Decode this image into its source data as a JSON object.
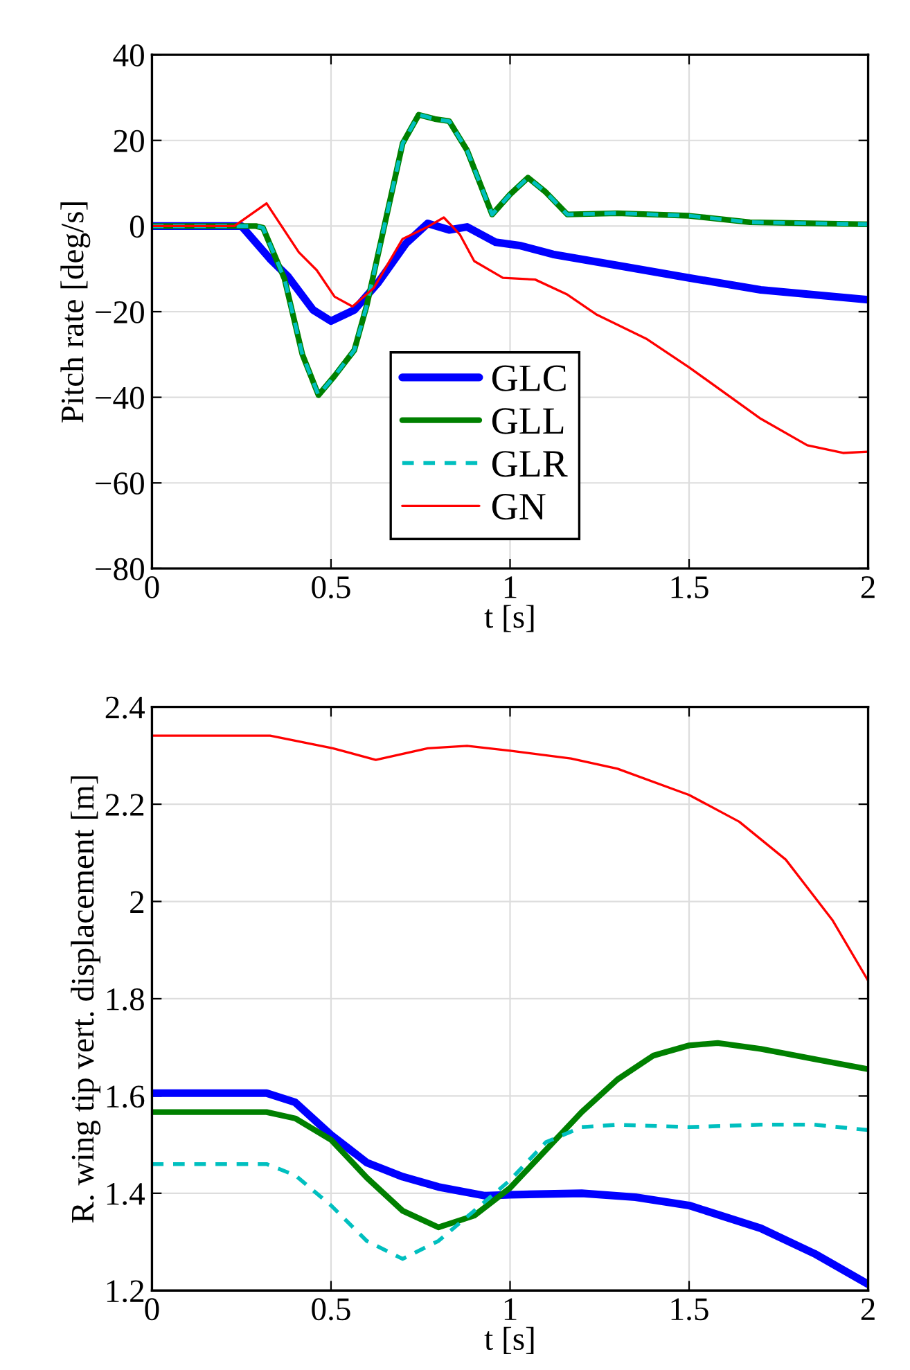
{
  "chart_data": [
    {
      "type": "line",
      "xlabel": "t [s]",
      "ylabel": "Pitch rate [deg/s]",
      "xlim": [
        0,
        2
      ],
      "ylim": [
        -80,
        40
      ],
      "xticks": [
        0,
        0.5,
        1,
        1.5,
        2
      ],
      "yticks": [
        -80,
        -60,
        -40,
        -20,
        0,
        20,
        40
      ],
      "grid": true,
      "legend": "bottom",
      "series": [
        {
          "name": "GLC",
          "color": "#0000ff",
          "line_style": "solid",
          "x": [
            0,
            0.25,
            0.33,
            0.38,
            0.45,
            0.5,
            0.565,
            0.63,
            0.71,
            0.77,
            0.83,
            0.88,
            0.96,
            1.03,
            1.12,
            1.3,
            1.5,
            1.7,
            2
          ],
          "values": [
            0,
            0,
            -7.7,
            -11.8,
            -19.6,
            -22.2,
            -19.6,
            -13.4,
            -4,
            0.6,
            -0.9,
            -0.2,
            -3.8,
            -4.6,
            -6.6,
            -9.2,
            -12.1,
            -14.9,
            -17.2
          ]
        },
        {
          "name": "GLL",
          "color": "#008000",
          "line_style": "solid",
          "x": [
            0,
            0.29,
            0.31,
            0.37,
            0.42,
            0.465,
            0.51,
            0.565,
            0.6,
            0.66,
            0.7,
            0.745,
            0.79,
            0.83,
            0.88,
            0.95,
            1.0,
            1.05,
            1.1,
            1.16,
            1.3,
            1.5,
            1.67,
            2
          ],
          "values": [
            0,
            0,
            -0.4,
            -12.3,
            -30,
            -39.5,
            -35,
            -29,
            -18.5,
            4.2,
            19.3,
            26,
            25,
            24.5,
            17.7,
            2.7,
            7.4,
            11.3,
            7.9,
            2.7,
            3,
            2.4,
            0.9,
            0.4
          ]
        },
        {
          "name": "GLR",
          "color": "#00bfbf",
          "line_style": "dashed",
          "x": [
            0,
            0.29,
            0.31,
            0.37,
            0.42,
            0.465,
            0.51,
            0.565,
            0.6,
            0.66,
            0.7,
            0.745,
            0.79,
            0.83,
            0.88,
            0.95,
            1.0,
            1.05,
            1.1,
            1.16,
            1.3,
            1.5,
            1.67,
            2
          ],
          "values": [
            0,
            0,
            -0.4,
            -12.3,
            -30,
            -39.5,
            -35,
            -29,
            -18.5,
            4.2,
            19.3,
            26,
            25,
            24.5,
            17.7,
            2.7,
            7.4,
            11.3,
            7.9,
            2.7,
            3,
            2.4,
            0.9,
            0.4
          ]
        },
        {
          "name": "GN",
          "color": "#ff0000",
          "line_style": "solid",
          "x": [
            0,
            0.23,
            0.32,
            0.41,
            0.46,
            0.51,
            0.56,
            0.62,
            0.7,
            0.765,
            0.815,
            0.86,
            0.9,
            0.98,
            1.07,
            1.16,
            1.24,
            1.38,
            1.5,
            1.7,
            1.83,
            1.93,
            2
          ],
          "values": [
            0,
            0,
            5.3,
            -6.1,
            -10.3,
            -16.5,
            -18.8,
            -14.4,
            -3,
            -0.4,
            2,
            -2,
            -8.2,
            -12.1,
            -12.5,
            -16,
            -20.6,
            -26.3,
            -33,
            -45,
            -51.2,
            -53,
            -52.7
          ]
        }
      ]
    },
    {
      "type": "line",
      "xlabel": "t [s]",
      "ylabel": "R. wing tip vert. displacement [m]",
      "xlim": [
        0,
        2
      ],
      "ylim": [
        1.2,
        2.4
      ],
      "xticks": [
        0,
        0.5,
        1,
        1.5,
        2
      ],
      "yticks": [
        1.2,
        1.4,
        1.6,
        1.8,
        2,
        2.2,
        2.4
      ],
      "grid": true,
      "series": [
        {
          "color": "#0000ff",
          "line_style": "solid",
          "x": [
            0,
            0.32,
            0.4,
            0.5,
            0.6,
            0.7,
            0.8,
            0.93,
            1.0,
            1.2,
            1.35,
            1.5,
            1.7,
            1.85,
            2
          ],
          "values": [
            1.606,
            1.606,
            1.587,
            1.52,
            1.463,
            1.434,
            1.413,
            1.395,
            1.397,
            1.4,
            1.392,
            1.375,
            1.328,
            1.276,
            1.213
          ]
        },
        {
          "color": "#008000",
          "line_style": "solid",
          "x": [
            0,
            0.32,
            0.4,
            0.5,
            0.6,
            0.7,
            0.8,
            0.9,
            1.0,
            1.1,
            1.2,
            1.3,
            1.4,
            1.5,
            1.58,
            1.7,
            1.85,
            2
          ],
          "values": [
            1.567,
            1.567,
            1.554,
            1.51,
            1.432,
            1.364,
            1.33,
            1.354,
            1.411,
            1.489,
            1.567,
            1.634,
            1.683,
            1.704,
            1.709,
            1.697,
            1.676,
            1.655
          ]
        },
        {
          "color": "#00bfbf",
          "line_style": "dashed",
          "x": [
            0,
            0.32,
            0.4,
            0.5,
            0.6,
            0.7,
            0.8,
            0.9,
            1.0,
            1.1,
            1.2,
            1.3,
            1.5,
            1.7,
            1.85,
            2
          ],
          "values": [
            1.46,
            1.46,
            1.437,
            1.375,
            1.302,
            1.265,
            1.302,
            1.364,
            1.427,
            1.505,
            1.536,
            1.541,
            1.536,
            1.541,
            1.541,
            1.53
          ]
        },
        {
          "color": "#ff0000",
          "line_style": "solid",
          "x": [
            0,
            0.33,
            0.505,
            0.625,
            0.77,
            0.88,
            1.0,
            1.17,
            1.3,
            1.5,
            1.64,
            1.77,
            1.9,
            2
          ],
          "values": [
            2.341,
            2.341,
            2.315,
            2.291,
            2.315,
            2.32,
            2.31,
            2.294,
            2.273,
            2.219,
            2.164,
            2.086,
            1.962,
            1.837
          ]
        }
      ]
    }
  ]
}
